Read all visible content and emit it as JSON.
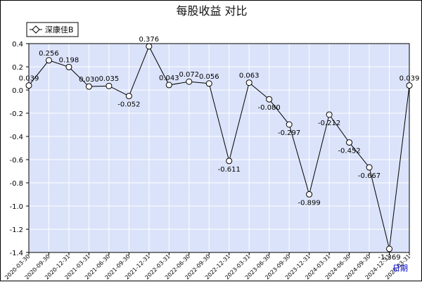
{
  "chart_data": {
    "type": "line",
    "title": "每股收益 对比",
    "xlabel": "日期",
    "ylabel": "",
    "ylim": [
      -1.4,
      0.4
    ],
    "yticks": [
      0.4,
      0.2,
      0.0,
      -0.2,
      -0.4,
      -0.6,
      -0.8,
      -1.0,
      -1.2,
      -1.4
    ],
    "ytick_labels": [
      "0.4",
      "0.2",
      "0.0",
      "-0.2",
      "-0.4",
      "-0.6",
      "-0.8",
      "-1.0",
      "-1.2",
      "-1.4"
    ],
    "grid": true,
    "legend": "top-left",
    "colors": {
      "plot_bg": "#dbe3fa",
      "grid": "#ffffff",
      "line": "#000000",
      "marker_fill": "#ffffff"
    },
    "x": [
      "2020-03-30",
      "2020-09-30",
      "2020-12-31",
      "2021-03-31",
      "2021-06-30",
      "2021-09-30",
      "2021-12-31",
      "2022-03-31",
      "2022-06-30",
      "2022-09-30",
      "2022-12-31",
      "2023-03-31",
      "2023-06-30",
      "2023-09-30",
      "2023-12-31",
      "2024-03-31",
      "2024-06-30",
      "2024-09-30",
      "2024-12-31",
      "2025-03-31"
    ],
    "series": [
      {
        "name": "深康佳B",
        "values": [
          0.039,
          0.256,
          0.198,
          0.03,
          0.035,
          -0.052,
          0.376,
          0.043,
          0.072,
          0.056,
          -0.611,
          0.063,
          -0.08,
          -0.297,
          -0.899,
          -0.212,
          -0.452,
          -0.667,
          -1.369,
          0.039
        ],
        "labels": [
          "0.039",
          "0.256",
          "0.198",
          "0.030",
          "0.035",
          "-0.052",
          "0.376",
          "0.043",
          "0.072",
          "0.056",
          "-0.611",
          "0.063",
          "-0.080",
          "-0.297",
          "-0.899",
          "-0.212",
          "-0.452",
          "-0.667",
          "-1.369",
          "0.039"
        ]
      }
    ]
  }
}
